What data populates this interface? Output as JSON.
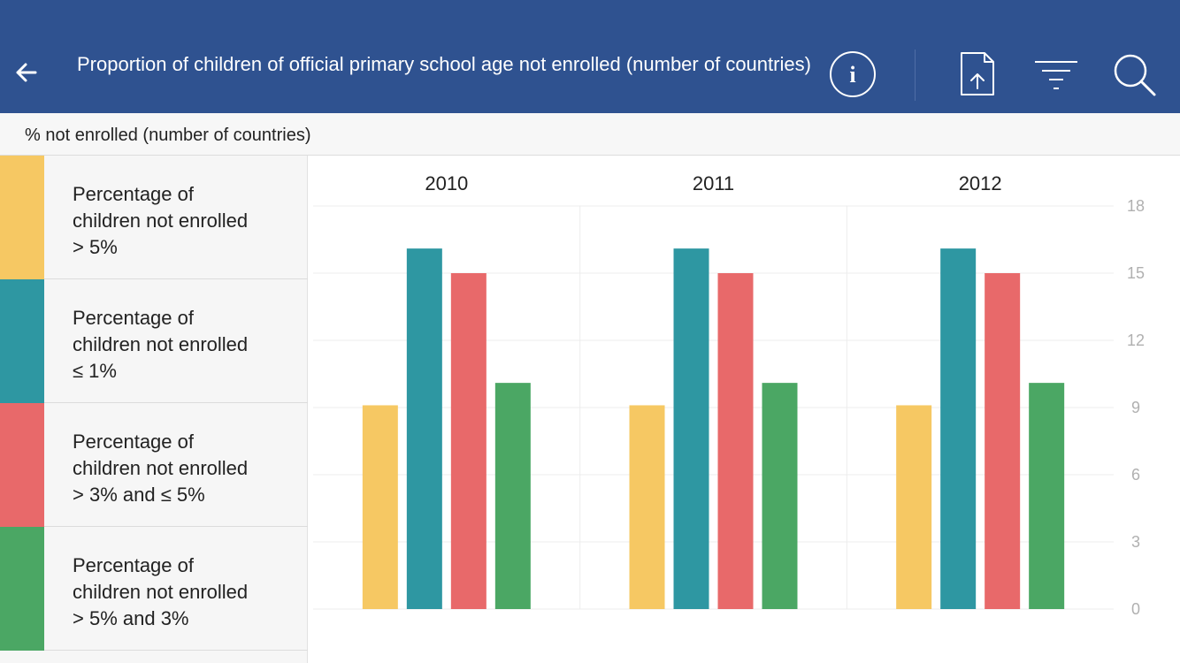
{
  "header": {
    "title": "Proportion of children of official primary school age not enrolled (number of countries)",
    "back_icon": "arrow-left-icon",
    "info_icon": "info-circle-icon",
    "export_icon": "export-upload-icon",
    "filter_icon": "filter-icon",
    "search_icon": "search-icon",
    "background": "#2f5290"
  },
  "subheader": {
    "label": "% not enrolled (number of countries)"
  },
  "legend": {
    "items": [
      {
        "line1": "Percentage of",
        "line2": "children not enrolled",
        "line3": "> 5%",
        "color": "#f6c863"
      },
      {
        "line1": "Percentage of",
        "line2": "children not enrolled",
        "line3": "≤ 1%",
        "color": "#2e97a2"
      },
      {
        "line1": "Percentage of",
        "line2": "children not enrolled",
        "line3": "> 3% and ≤ 5%",
        "color": "#e8696a"
      },
      {
        "line1": "Percentage of",
        "line2": "children not enrolled",
        "line3": "> 5% and 3%",
        "color": "#4ba764"
      }
    ]
  },
  "chart_data": {
    "type": "bar",
    "categories": [
      "2010",
      "2011",
      "2012"
    ],
    "series": [
      {
        "name": "Percentage of children not enrolled > 5%",
        "values": [
          9.1,
          9.1,
          9.1
        ],
        "color": "#f6c863"
      },
      {
        "name": "Percentage of children not enrolled ≤ 1%",
        "values": [
          16.1,
          16.1,
          16.1
        ],
        "color": "#2e97a2"
      },
      {
        "name": "Percentage of children not enrolled > 3% and ≤ 5%",
        "values": [
          15,
          15,
          15
        ],
        "color": "#e8696a"
      },
      {
        "name": "Percentage of children not enrolled > 5% and 3%",
        "values": [
          10.1,
          10.1,
          10.1
        ],
        "color": "#4ba764"
      }
    ],
    "yticks": [
      "0",
      "3",
      "6",
      "9",
      "12",
      "15",
      "18"
    ],
    "ylim": [
      0,
      18
    ],
    "grid": true,
    "axis_position": "right"
  }
}
